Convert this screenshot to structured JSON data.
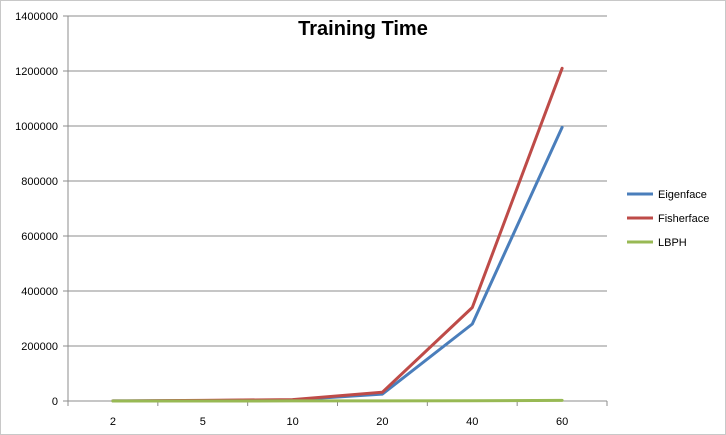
{
  "chart_data": {
    "type": "line",
    "title": "Training Time",
    "xlabel": "",
    "ylabel": "",
    "categories": [
      "2",
      "5",
      "10",
      "20",
      "40",
      "60"
    ],
    "ylim": [
      0,
      1400000
    ],
    "yticks": [
      0,
      200000,
      400000,
      600000,
      800000,
      1000000,
      1200000,
      1400000
    ],
    "ytick_labels": [
      "0",
      "200000",
      "400000",
      "600000",
      "800000",
      "1000000",
      "1200000",
      "1400000"
    ],
    "grid": true,
    "legend_position": "right",
    "series": [
      {
        "name": "Eigenface",
        "color": "#4A7EBB",
        "values": [
          300,
          1500,
          4000,
          25000,
          280000,
          995000
        ]
      },
      {
        "name": "Fisherface",
        "color": "#BE4B48",
        "values": [
          400,
          2000,
          5000,
          32000,
          340000,
          1210000
        ]
      },
      {
        "name": "LBPH",
        "color": "#98B954",
        "values": [
          50,
          100,
          200,
          500,
          1000,
          2000
        ]
      }
    ]
  }
}
